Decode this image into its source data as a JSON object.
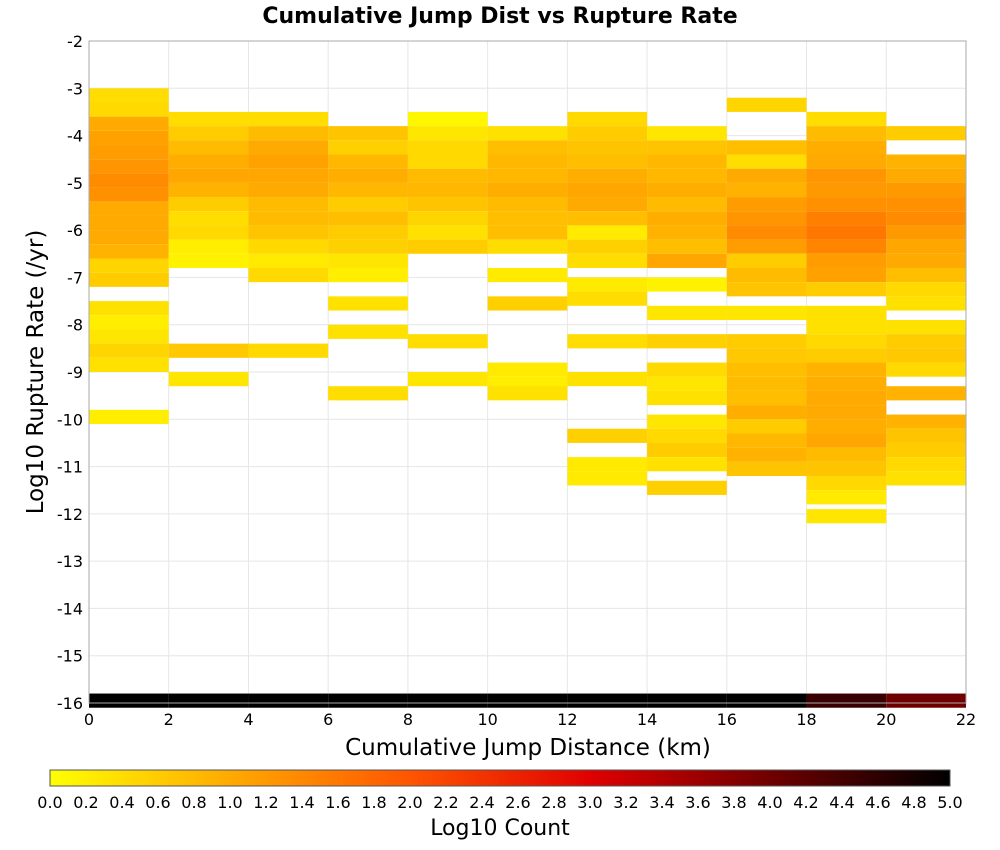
{
  "chart_data": {
    "type": "heatmap",
    "title": "Cumulative Jump Dist vs Rupture Rate",
    "xlabel": "Cumulative Jump Distance (km)",
    "ylabel": "Log10 Rupture Rate (/yr)",
    "xlim": [
      0,
      22
    ],
    "ylim": [
      -16,
      -2
    ],
    "x_ticks": [
      0,
      2,
      4,
      6,
      8,
      10,
      12,
      14,
      16,
      18,
      20,
      22
    ],
    "y_ticks": [
      -2,
      -3,
      -4,
      -5,
      -6,
      -7,
      -8,
      -9,
      -10,
      -11,
      -12,
      -13,
      -14,
      -15,
      -16
    ],
    "cell_width": 2,
    "cell_height": 0.3,
    "grid": true,
    "colorbar": {
      "label": "Log10 Count",
      "range": [
        0.0,
        5.0
      ],
      "ticks": [
        "0.0",
        "0.2",
        "0.4",
        "0.6",
        "0.8",
        "1.0",
        "1.2",
        "1.4",
        "1.6",
        "1.8",
        "2.0",
        "2.2",
        "2.4",
        "2.6",
        "2.8",
        "3.0",
        "3.2",
        "3.4",
        "3.6",
        "3.8",
        "4.0",
        "4.2",
        "4.4",
        "4.6",
        "4.8",
        "5.0"
      ],
      "colors": [
        "#ffff00",
        "#ffaa00",
        "#ff5500",
        "#e00000",
        "#700000",
        "#000000"
      ]
    },
    "columns": [
      {
        "x": 1,
        "cells": [
          [
            -3.15,
            0.4
          ],
          [
            -3.45,
            0.45
          ],
          [
            -3.75,
            1.0
          ],
          [
            -4.05,
            1.1
          ],
          [
            -4.35,
            1.15
          ],
          [
            -4.65,
            1.25
          ],
          [
            -4.95,
            1.35
          ],
          [
            -5.25,
            1.3
          ],
          [
            -5.55,
            1.0
          ],
          [
            -5.85,
            1.0
          ],
          [
            -6.15,
            1.0
          ],
          [
            -6.45,
            0.9
          ],
          [
            -6.75,
            0.5
          ],
          [
            -7.05,
            0.6
          ],
          [
            -7.65,
            0.35
          ],
          [
            -7.95,
            0.2
          ],
          [
            -8.25,
            0.3
          ],
          [
            -8.55,
            0.5
          ],
          [
            -8.85,
            0.35
          ],
          [
            -9.95,
            0.2
          ],
          [
            -15.95,
            5.0
          ]
        ]
      },
      {
        "x": 3,
        "cells": [
          [
            -3.65,
            0.4
          ],
          [
            -3.95,
            0.6
          ],
          [
            -4.25,
            0.8
          ],
          [
            -4.55,
            0.95
          ],
          [
            -4.85,
            1.05
          ],
          [
            -5.15,
            0.9
          ],
          [
            -5.45,
            0.6
          ],
          [
            -5.75,
            0.4
          ],
          [
            -6.05,
            0.45
          ],
          [
            -6.35,
            0.2
          ],
          [
            -6.65,
            0.15
          ],
          [
            -8.55,
            0.65
          ],
          [
            -9.15,
            0.3
          ],
          [
            -15.95,
            5.0
          ]
        ]
      },
      {
        "x": 5,
        "cells": [
          [
            -3.65,
            0.4
          ],
          [
            -3.95,
            0.8
          ],
          [
            -4.25,
            1.0
          ],
          [
            -4.55,
            1.1
          ],
          [
            -4.85,
            1.05
          ],
          [
            -5.15,
            1.0
          ],
          [
            -5.45,
            0.8
          ],
          [
            -5.75,
            0.8
          ],
          [
            -6.05,
            0.7
          ],
          [
            -6.35,
            0.45
          ],
          [
            -6.65,
            0.25
          ],
          [
            -6.95,
            0.45
          ],
          [
            -8.55,
            0.45
          ],
          [
            -15.95,
            5.0
          ]
        ]
      },
      {
        "x": 7,
        "cells": [
          [
            -3.95,
            0.7
          ],
          [
            -4.25,
            0.55
          ],
          [
            -4.55,
            0.85
          ],
          [
            -4.85,
            0.95
          ],
          [
            -5.15,
            0.85
          ],
          [
            -5.45,
            0.6
          ],
          [
            -5.75,
            0.75
          ],
          [
            -6.05,
            0.6
          ],
          [
            -6.35,
            0.55
          ],
          [
            -6.65,
            0.3
          ],
          [
            -6.95,
            0.2
          ],
          [
            -7.55,
            0.35
          ],
          [
            -8.15,
            0.35
          ],
          [
            -9.45,
            0.4
          ],
          [
            -15.95,
            5.0
          ]
        ]
      },
      {
        "x": 9,
        "cells": [
          [
            -3.65,
            0.1
          ],
          [
            -3.95,
            0.3
          ],
          [
            -4.25,
            0.45
          ],
          [
            -4.55,
            0.45
          ],
          [
            -4.85,
            0.8
          ],
          [
            -5.15,
            0.85
          ],
          [
            -5.45,
            0.7
          ],
          [
            -5.75,
            0.5
          ],
          [
            -6.05,
            0.35
          ],
          [
            -6.35,
            0.6
          ],
          [
            -8.35,
            0.4
          ],
          [
            -9.15,
            0.3
          ],
          [
            -15.95,
            5.0
          ]
        ]
      },
      {
        "x": 11,
        "cells": [
          [
            -3.95,
            0.35
          ],
          [
            -4.25,
            0.75
          ],
          [
            -4.55,
            0.85
          ],
          [
            -4.85,
            0.85
          ],
          [
            -5.15,
            0.95
          ],
          [
            -5.45,
            0.8
          ],
          [
            -5.75,
            0.75
          ],
          [
            -6.05,
            0.75
          ],
          [
            -6.35,
            0.4
          ],
          [
            -6.95,
            0.25
          ],
          [
            -7.55,
            0.55
          ],
          [
            -8.95,
            0.25
          ],
          [
            -9.25,
            0.2
          ],
          [
            -9.45,
            0.35
          ],
          [
            -15.95,
            5.0
          ]
        ]
      },
      {
        "x": 13,
        "cells": [
          [
            -3.65,
            0.45
          ],
          [
            -3.95,
            0.6
          ],
          [
            -4.25,
            0.7
          ],
          [
            -4.55,
            0.75
          ],
          [
            -4.85,
            0.95
          ],
          [
            -5.15,
            1.05
          ],
          [
            -5.45,
            1.0
          ],
          [
            -5.75,
            0.75
          ],
          [
            -6.05,
            0.25
          ],
          [
            -6.35,
            0.55
          ],
          [
            -6.65,
            0.4
          ],
          [
            -7.15,
            0.25
          ],
          [
            -7.45,
            0.4
          ],
          [
            -8.35,
            0.4
          ],
          [
            -9.15,
            0.35
          ],
          [
            -10.35,
            0.55
          ],
          [
            -10.95,
            0.25
          ],
          [
            -11.25,
            0.25
          ],
          [
            -15.95,
            5.0
          ]
        ]
      },
      {
        "x": 15,
        "cells": [
          [
            -3.95,
            0.3
          ],
          [
            -4.25,
            0.7
          ],
          [
            -4.55,
            0.85
          ],
          [
            -4.85,
            0.85
          ],
          [
            -5.15,
            0.95
          ],
          [
            -5.45,
            0.8
          ],
          [
            -5.75,
            0.95
          ],
          [
            -6.05,
            0.9
          ],
          [
            -6.35,
            0.75
          ],
          [
            -6.65,
            1.05
          ],
          [
            -7.15,
            0.15
          ],
          [
            -7.75,
            0.3
          ],
          [
            -8.35,
            0.55
          ],
          [
            -8.95,
            0.45
          ],
          [
            -9.25,
            0.3
          ],
          [
            -9.55,
            0.35
          ],
          [
            -10.05,
            0.3
          ],
          [
            -10.35,
            0.45
          ],
          [
            -10.65,
            0.6
          ],
          [
            -10.95,
            0.35
          ],
          [
            -11.45,
            0.55
          ],
          [
            -15.95,
            5.0
          ]
        ]
      },
      {
        "x": 17,
        "cells": [
          [
            -3.35,
            0.5
          ],
          [
            -4.25,
            0.75
          ],
          [
            -4.55,
            0.4
          ],
          [
            -4.85,
            1.0
          ],
          [
            -5.15,
            0.9
          ],
          [
            -5.45,
            1.15
          ],
          [
            -5.75,
            1.25
          ],
          [
            -6.05,
            1.35
          ],
          [
            -6.35,
            1.15
          ],
          [
            -6.65,
            0.6
          ],
          [
            -6.95,
            0.8
          ],
          [
            -7.25,
            0.7
          ],
          [
            -7.75,
            0.3
          ],
          [
            -8.35,
            0.6
          ],
          [
            -8.65,
            0.65
          ],
          [
            -8.95,
            0.75
          ],
          [
            -9.25,
            0.8
          ],
          [
            -9.55,
            0.75
          ],
          [
            -9.85,
            0.95
          ],
          [
            -10.15,
            0.6
          ],
          [
            -10.45,
            0.85
          ],
          [
            -10.75,
            0.9
          ],
          [
            -11.05,
            0.7
          ],
          [
            -15.95,
            5.0
          ]
        ]
      },
      {
        "x": 19,
        "cells": [
          [
            -3.65,
            0.4
          ],
          [
            -3.95,
            0.8
          ],
          [
            -4.25,
            0.95
          ],
          [
            -4.55,
            1.0
          ],
          [
            -4.85,
            1.25
          ],
          [
            -5.15,
            1.2
          ],
          [
            -5.45,
            1.3
          ],
          [
            -5.75,
            1.5
          ],
          [
            -6.05,
            1.6
          ],
          [
            -6.35,
            1.45
          ],
          [
            -6.65,
            1.15
          ],
          [
            -6.95,
            1.1
          ],
          [
            -7.25,
            0.6
          ],
          [
            -7.75,
            0.35
          ],
          [
            -8.05,
            0.35
          ],
          [
            -8.35,
            0.45
          ],
          [
            -8.65,
            0.6
          ],
          [
            -8.95,
            0.9
          ],
          [
            -9.25,
            0.95
          ],
          [
            -9.55,
            1.0
          ],
          [
            -9.85,
            1.0
          ],
          [
            -10.15,
            0.95
          ],
          [
            -10.45,
            1.05
          ],
          [
            -10.75,
            0.8
          ],
          [
            -11.05,
            0.7
          ],
          [
            -11.35,
            0.45
          ],
          [
            -11.65,
            0.25
          ],
          [
            -12.05,
            0.3
          ],
          [
            -15.95,
            4.5
          ]
        ]
      },
      {
        "x": 21,
        "cells": [
          [
            -3.95,
            0.6
          ],
          [
            -4.55,
            0.9
          ],
          [
            -4.85,
            1.0
          ],
          [
            -5.15,
            1.2
          ],
          [
            -5.45,
            1.3
          ],
          [
            -5.75,
            1.35
          ],
          [
            -6.05,
            1.2
          ],
          [
            -6.35,
            1.05
          ],
          [
            -6.65,
            1.0
          ],
          [
            -6.95,
            0.75
          ],
          [
            -7.25,
            0.45
          ],
          [
            -7.55,
            0.35
          ],
          [
            -8.05,
            0.35
          ],
          [
            -8.35,
            0.6
          ],
          [
            -8.65,
            0.65
          ],
          [
            -8.95,
            0.45
          ],
          [
            -9.45,
            0.9
          ],
          [
            -10.05,
            0.9
          ],
          [
            -10.35,
            0.7
          ],
          [
            -10.65,
            0.6
          ],
          [
            -10.95,
            0.45
          ],
          [
            -11.25,
            0.35
          ],
          [
            -15.95,
            4.0
          ]
        ]
      }
    ]
  }
}
